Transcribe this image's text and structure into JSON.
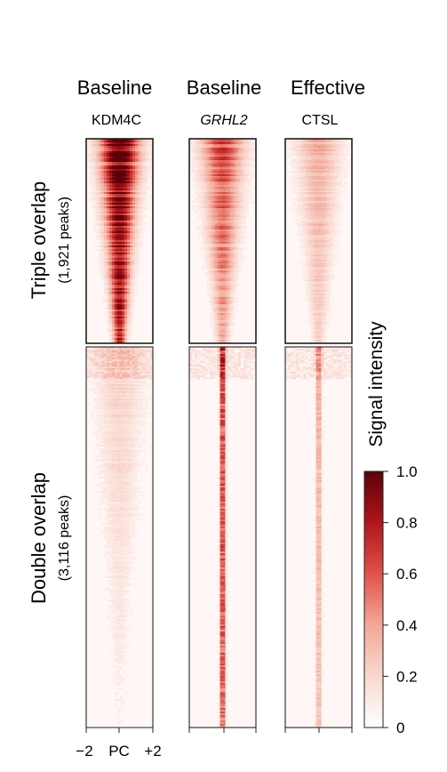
{
  "chart_data": {
    "type": "heatmap",
    "columns": [
      {
        "condition": "Baseline",
        "target": "KDM4C",
        "italic": false
      },
      {
        "condition": "Baseline",
        "target": "GRHL2",
        "italic": true
      },
      {
        "condition": "Effective",
        "target": "CTSL",
        "italic": false
      }
    ],
    "row_groups": [
      {
        "label": "Triple overlap",
        "sublabel": "(1,921 peaks)",
        "peaks": 1921
      },
      {
        "label": "Double overlap",
        "sublabel": "(3,116 peaks)",
        "peaks": 3116
      }
    ],
    "x_ticks": [
      "−2",
      "PC",
      "+2"
    ],
    "x_range_kb": [
      -2,
      2
    ],
    "colorbar": {
      "title": "Signal intensity",
      "ticks": [
        "0",
        "0.2",
        "0.4",
        "0.6",
        "0.8",
        "1.0"
      ],
      "range": [
        0,
        1
      ],
      "colors": [
        "#ffffff",
        "#f9d8cf",
        "#f2a898",
        "#e0534a",
        "#b0151b",
        "#5a0208"
      ]
    },
    "approx_peak_intensity": {
      "KDM4C": {
        "Triple overlap": 0.95,
        "Double overlap": 0.15
      },
      "GRHL2": {
        "Triple overlap": 0.55,
        "Double overlap": 0.75
      },
      "CTSL": {
        "Triple overlap": 0.3,
        "Double overlap": 0.45
      }
    }
  }
}
